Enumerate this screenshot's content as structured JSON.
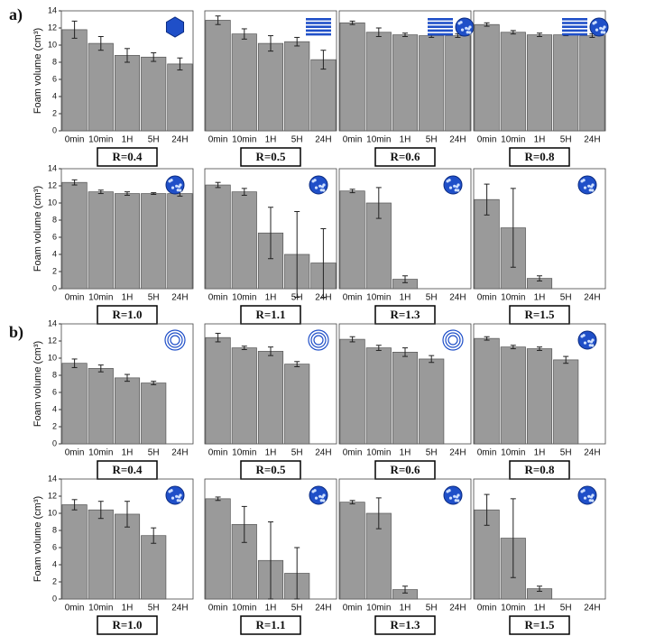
{
  "panel_labels": [
    "a)",
    "b)"
  ],
  "chart_data": [
    {
      "type": "bar",
      "label": "R=0.4",
      "ylabel": "Foam volume (cm³)",
      "icon": "hexagon",
      "categories": [
        "0min",
        "10min",
        "1H",
        "5H",
        "24H"
      ],
      "values": [
        11.8,
        10.2,
        8.8,
        8.6,
        7.8
      ],
      "errors": [
        1.0,
        0.8,
        0.8,
        0.5,
        0.7
      ],
      "color": "#9a9a9a",
      "ylim": [
        0,
        14
      ],
      "yticks": [
        0,
        2,
        4,
        6,
        8,
        10,
        12,
        14
      ]
    },
    {
      "type": "bar",
      "label": "R=0.5",
      "icon": "lamellae",
      "categories": [
        "0min",
        "10min",
        "1H",
        "5H",
        "24H"
      ],
      "values": [
        12.9,
        11.3,
        10.2,
        10.4,
        8.3
      ],
      "errors": [
        0.5,
        0.6,
        0.9,
        0.5,
        1.1
      ],
      "color": "#9a9a9a",
      "ylim": [
        0,
        14
      ]
    },
    {
      "type": "bar",
      "label": "R=0.6",
      "icon": "lamellae-sphere",
      "categories": [
        "0min",
        "10min",
        "1H",
        "5H",
        "24H"
      ],
      "values": [
        12.6,
        11.5,
        11.2,
        11.1,
        11.1
      ],
      "errors": [
        0.2,
        0.5,
        0.2,
        0.2,
        0.2
      ],
      "color": "#9a9a9a",
      "ylim": [
        0,
        14
      ]
    },
    {
      "type": "bar",
      "label": "R=0.8",
      "icon": "lamellae-sphere",
      "categories": [
        "0min",
        "10min",
        "1H",
        "5H",
        "24H"
      ],
      "values": [
        12.4,
        11.5,
        11.2,
        11.2,
        11.1
      ],
      "errors": [
        0.2,
        0.2,
        0.2,
        0.1,
        0.2
      ],
      "color": "#9a9a9a",
      "ylim": [
        0,
        14
      ]
    },
    {
      "type": "bar",
      "label": "R=1.0",
      "ylabel": "Foam volume (cm³)",
      "icon": "sphere",
      "categories": [
        "0min",
        "10min",
        "1H",
        "5H",
        "24H"
      ],
      "values": [
        12.4,
        11.3,
        11.1,
        11.1,
        11.1
      ],
      "errors": [
        0.3,
        0.2,
        0.2,
        0.1,
        0.3
      ],
      "color": "#9a9a9a",
      "ylim": [
        0,
        14
      ],
      "yticks": [
        0,
        2,
        4,
        6,
        8,
        10,
        12,
        14
      ]
    },
    {
      "type": "bar",
      "label": "R=1.1",
      "icon": "sphere",
      "categories": [
        "0min",
        "10min",
        "1H",
        "5H",
        "24H"
      ],
      "values": [
        12.1,
        11.3,
        6.5,
        4.0,
        3.0
      ],
      "errors": [
        0.3,
        0.4,
        3.0,
        5.0,
        4.0
      ],
      "color": "#9a9a9a",
      "ylim": [
        0,
        14
      ]
    },
    {
      "type": "bar",
      "label": "R=1.3",
      "icon": "sphere",
      "categories": [
        "0min",
        "10min",
        "1H",
        "5H",
        "24H"
      ],
      "values": [
        11.4,
        10.0,
        1.1,
        null,
        null
      ],
      "errors": [
        0.2,
        1.8,
        0.4,
        null,
        null
      ],
      "color": "#9a9a9a",
      "ylim": [
        0,
        14
      ]
    },
    {
      "type": "bar",
      "label": "R=1.5",
      "icon": "sphere",
      "categories": [
        "0min",
        "10min",
        "1H",
        "5H",
        "24H"
      ],
      "values": [
        10.4,
        7.1,
        1.2,
        null,
        null
      ],
      "errors": [
        1.8,
        4.6,
        0.3,
        null,
        null
      ],
      "color": "#9a9a9a",
      "ylim": [
        0,
        14
      ]
    },
    {
      "type": "bar",
      "label": "R=0.4",
      "ylabel": "Foam volume (cm³)",
      "icon": "rings",
      "categories": [
        "0min",
        "10min",
        "1H",
        "5H",
        "24H"
      ],
      "values": [
        9.4,
        8.8,
        7.7,
        7.1,
        null
      ],
      "errors": [
        0.5,
        0.4,
        0.4,
        0.2,
        null
      ],
      "color": "#9a9a9a",
      "ylim": [
        0,
        14
      ],
      "yticks": [
        0,
        2,
        4,
        6,
        8,
        10,
        12,
        14
      ]
    },
    {
      "type": "bar",
      "label": "R=0.5",
      "icon": "rings",
      "categories": [
        "0min",
        "10min",
        "1H",
        "5H",
        "24H"
      ],
      "values": [
        12.4,
        11.2,
        10.8,
        9.3,
        null
      ],
      "errors": [
        0.5,
        0.2,
        0.5,
        0.3,
        null
      ],
      "color": "#9a9a9a",
      "ylim": [
        0,
        14
      ]
    },
    {
      "type": "bar",
      "label": "R=0.6",
      "icon": "rings",
      "categories": [
        "0min",
        "10min",
        "1H",
        "5H",
        "24H"
      ],
      "values": [
        12.2,
        11.2,
        10.7,
        9.9,
        null
      ],
      "errors": [
        0.3,
        0.3,
        0.5,
        0.4,
        null
      ],
      "color": "#9a9a9a",
      "ylim": [
        0,
        14
      ]
    },
    {
      "type": "bar",
      "label": "R=0.8",
      "icon": "sphere",
      "categories": [
        "0min",
        "10min",
        "1H",
        "5H",
        "24H"
      ],
      "values": [
        12.3,
        11.3,
        11.1,
        9.8,
        null
      ],
      "errors": [
        0.2,
        0.2,
        0.2,
        0.4,
        null
      ],
      "color": "#9a9a9a",
      "ylim": [
        0,
        14
      ]
    },
    {
      "type": "bar",
      "label": "R=1.0",
      "ylabel": "Foam volume (cm³)",
      "icon": "sphere",
      "categories": [
        "0min",
        "10min",
        "1H",
        "5H",
        "24H"
      ],
      "values": [
        11.0,
        10.4,
        9.9,
        7.4,
        null
      ],
      "errors": [
        0.6,
        1.0,
        1.5,
        0.9,
        null
      ],
      "color": "#9a9a9a",
      "ylim": [
        0,
        14
      ],
      "yticks": [
        0,
        2,
        4,
        6,
        8,
        10,
        12,
        14
      ]
    },
    {
      "type": "bar",
      "label": "R=1.1",
      "icon": "sphere",
      "categories": [
        "0min",
        "10min",
        "1H",
        "5H",
        "24H"
      ],
      "values": [
        11.7,
        8.7,
        4.5,
        3.0,
        null
      ],
      "errors": [
        0.2,
        2.1,
        4.5,
        3.0,
        null
      ],
      "color": "#9a9a9a",
      "ylim": [
        0,
        14
      ]
    },
    {
      "type": "bar",
      "label": "R=1.3",
      "icon": "sphere",
      "categories": [
        "0min",
        "10min",
        "1H",
        "5H",
        "24H"
      ],
      "values": [
        11.3,
        10.0,
        1.1,
        null,
        null
      ],
      "errors": [
        0.2,
        1.8,
        0.4,
        null,
        null
      ],
      "color": "#9a9a9a",
      "ylim": [
        0,
        14
      ]
    },
    {
      "type": "bar",
      "label": "R=1.5",
      "icon": "sphere",
      "categories": [
        "0min",
        "10min",
        "1H",
        "5H",
        "24H"
      ],
      "values": [
        10.4,
        7.1,
        1.2,
        null,
        null
      ],
      "errors": [
        1.8,
        4.6,
        0.3,
        null,
        null
      ],
      "color": "#9a9a9a",
      "ylim": [
        0,
        14
      ]
    }
  ]
}
